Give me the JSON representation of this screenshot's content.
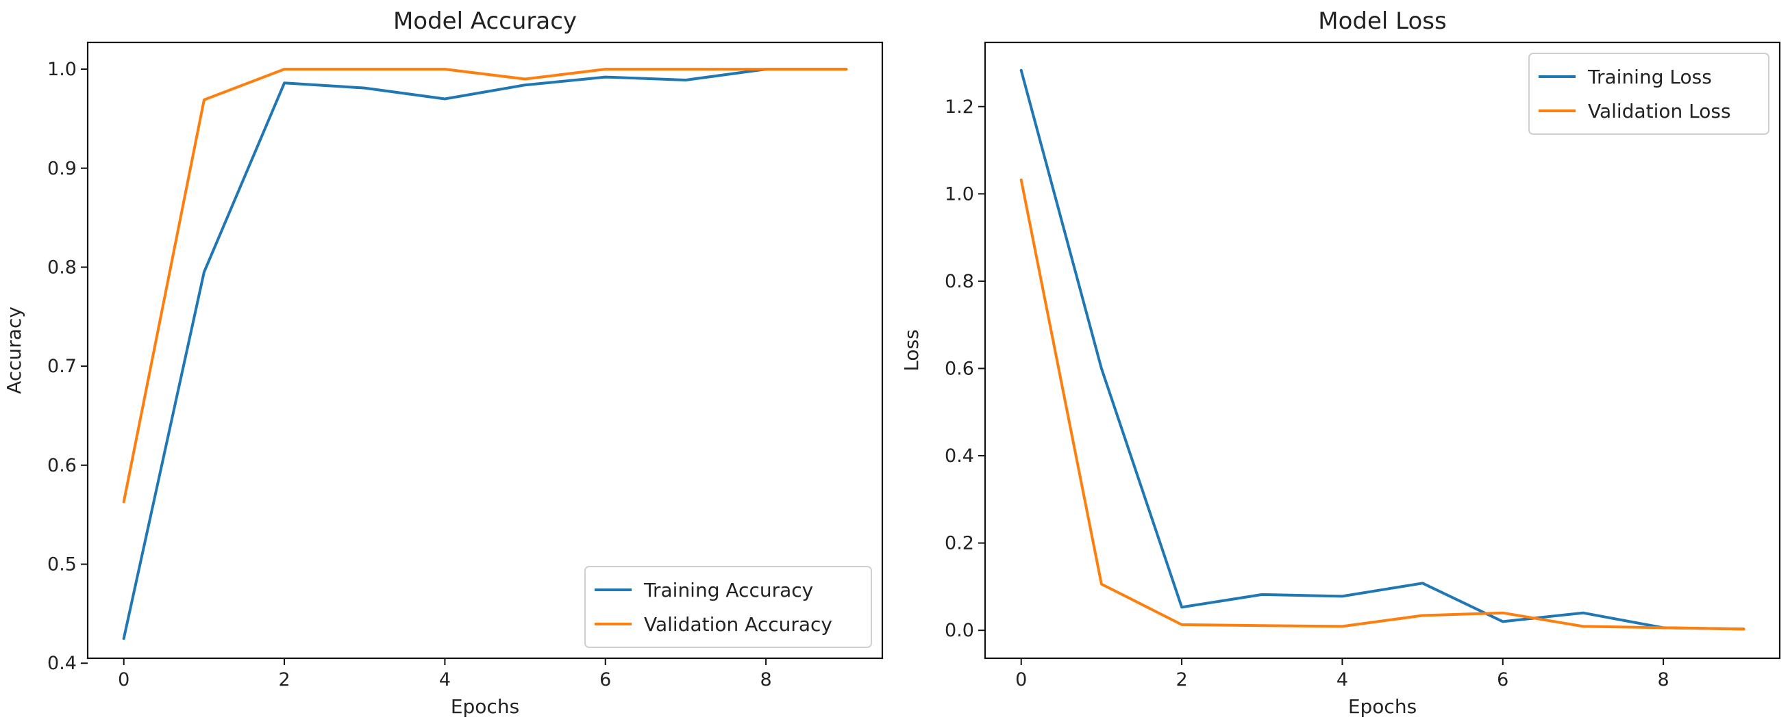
{
  "chart_data": [
    {
      "type": "line",
      "title": "Model Accuracy",
      "xlabel": "Epochs",
      "ylabel": "Accuracy",
      "xlim": [
        -0.45,
        9.45
      ],
      "ylim": [
        0.405,
        1.027
      ],
      "xticks": [
        0,
        2,
        4,
        6,
        8
      ],
      "xtick_labels": [
        "0",
        "2",
        "4",
        "6",
        "8"
      ],
      "yticks": [
        0.4,
        0.5,
        0.6,
        0.7,
        0.8,
        0.9,
        1.0
      ],
      "ytick_labels": [
        "0.4",
        "0.5",
        "0.6",
        "0.7",
        "0.8",
        "0.9",
        "1.0"
      ],
      "x": [
        0,
        1,
        2,
        3,
        4,
        5,
        6,
        7,
        8,
        9
      ],
      "legend_position": "lower-right",
      "series": [
        {
          "name": "Training Accuracy",
          "color": "#1f77b4",
          "values": [
            0.425,
            0.795,
            0.986,
            0.981,
            0.97,
            0.984,
            0.992,
            0.989,
            1.0,
            1.0
          ]
        },
        {
          "name": "Validation Accuracy",
          "color": "#ff7f0e",
          "values": [
            0.563,
            0.969,
            1.0,
            1.0,
            1.0,
            0.99,
            1.0,
            1.0,
            1.0,
            1.0
          ]
        }
      ]
    },
    {
      "type": "line",
      "title": "Model Loss",
      "xlabel": "Epochs",
      "ylabel": "Loss",
      "xlim": [
        -0.45,
        9.45
      ],
      "ylim": [
        -0.064,
        1.347
      ],
      "xticks": [
        0,
        2,
        4,
        6,
        8
      ],
      "xtick_labels": [
        "0",
        "2",
        "4",
        "6",
        "8"
      ],
      "yticks": [
        0.0,
        0.2,
        0.4,
        0.6,
        0.8,
        1.0,
        1.2
      ],
      "ytick_labels": [
        "0.0",
        "0.2",
        "0.4",
        "0.6",
        "0.8",
        "1.0",
        "1.2"
      ],
      "x": [
        0,
        1,
        2,
        3,
        4,
        5,
        6,
        7,
        8,
        9
      ],
      "legend_position": "upper-right",
      "series": [
        {
          "name": "Training Loss",
          "color": "#1f77b4",
          "values": [
            1.283,
            0.6,
            0.053,
            0.082,
            0.078,
            0.108,
            0.02,
            0.04,
            0.006,
            0.003
          ]
        },
        {
          "name": "Validation Loss",
          "color": "#ff7f0e",
          "values": [
            1.032,
            0.106,
            0.013,
            0.011,
            0.009,
            0.034,
            0.04,
            0.009,
            0.006,
            0.003
          ]
        }
      ]
    }
  ]
}
